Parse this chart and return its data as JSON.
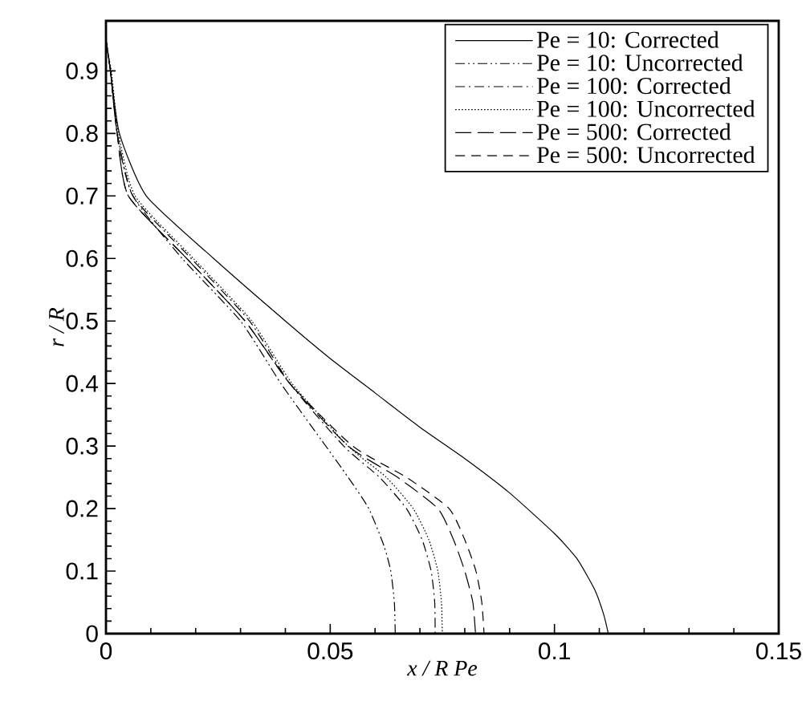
{
  "chart_data": {
    "type": "line",
    "xlabel": "x / R Pe",
    "ylabel": "r / R",
    "xlim": [
      0,
      0.15
    ],
    "ylim": [
      0,
      0.98
    ],
    "xticks": [
      0,
      0.05,
      0.1,
      0.15
    ],
    "yticks": [
      0,
      0.1,
      0.2,
      0.3,
      0.4,
      0.5,
      0.6,
      0.7,
      0.8,
      0.9
    ],
    "grid": false,
    "legend": "top right",
    "marker": "none",
    "series": [
      {
        "name": "Pe = 10: Corrected",
        "color": "#000000",
        "line_style": "solid",
        "x": [
          0,
          0.001,
          0.003,
          0.009,
          0.024,
          0.04,
          0.05,
          0.06,
          0.07,
          0.08,
          0.09,
          0.1,
          0.105,
          0.109,
          0.111,
          0.112
        ],
        "values": [
          0.95,
          0.9,
          0.8,
          0.7,
          0.6,
          0.5,
          0.44,
          0.385,
          0.33,
          0.28,
          0.225,
          0.16,
          0.12,
          0.07,
          0.03,
          0
        ]
      },
      {
        "name": "Pe = 10: Uncorrected",
        "color": "#000000",
        "line_style": "dashdotdotted",
        "x": [
          0,
          0.001,
          0.0025,
          0.006,
          0.017,
          0.03,
          0.039,
          0.048,
          0.054,
          0.0586,
          0.062,
          0.0635,
          0.0643,
          0.0645
        ],
        "values": [
          0.95,
          0.9,
          0.8,
          0.7,
          0.6,
          0.5,
          0.4,
          0.31,
          0.25,
          0.2,
          0.14,
          0.1,
          0.05,
          0
        ]
      },
      {
        "name": "Pe = 100: Corrected",
        "color": "#000000",
        "line_style": "dashdotted",
        "x": [
          0,
          0.001,
          0.0025,
          0.006,
          0.019,
          0.032,
          0.041,
          0.053,
          0.061,
          0.067,
          0.0705,
          0.0725,
          0.0733,
          0.0734
        ],
        "values": [
          0.95,
          0.9,
          0.8,
          0.7,
          0.6,
          0.5,
          0.4,
          0.3,
          0.25,
          0.2,
          0.15,
          0.1,
          0.05,
          0
        ]
      },
      {
        "name": "Pe = 100: Uncorrected",
        "color": "#000000",
        "line_style": "dotted",
        "x": [
          0,
          0.0012,
          0.0028,
          0.0065,
          0.0195,
          0.0325,
          0.0415,
          0.054,
          0.0625,
          0.0685,
          0.072,
          0.074,
          0.0748,
          0.075
        ],
        "values": [
          0.94,
          0.9,
          0.8,
          0.7,
          0.6,
          0.5,
          0.4,
          0.3,
          0.25,
          0.2,
          0.15,
          0.1,
          0.05,
          0
        ]
      },
      {
        "name": "Pe = 500: Corrected",
        "color": "#000000",
        "line_style": "longdashed",
        "x": [
          0,
          0.001,
          0.0025,
          0.005,
          0.018,
          0.031,
          0.041,
          0.054,
          0.065,
          0.074,
          0.0775,
          0.08,
          0.0818,
          0.0824
        ],
        "values": [
          0.95,
          0.9,
          0.8,
          0.7,
          0.6,
          0.5,
          0.4,
          0.3,
          0.25,
          0.2,
          0.15,
          0.1,
          0.05,
          0
        ]
      },
      {
        "name": "Pe = 500: Uncorrected",
        "color": "#000000",
        "line_style": "dashed",
        "x": [
          0,
          0.001,
          0.0025,
          0.005,
          0.018,
          0.031,
          0.041,
          0.055,
          0.067,
          0.0765,
          0.08,
          0.0825,
          0.0838,
          0.0843
        ],
        "values": [
          0.95,
          0.9,
          0.8,
          0.7,
          0.6,
          0.5,
          0.4,
          0.3,
          0.25,
          0.2,
          0.15,
          0.1,
          0.05,
          0
        ]
      }
    ]
  }
}
